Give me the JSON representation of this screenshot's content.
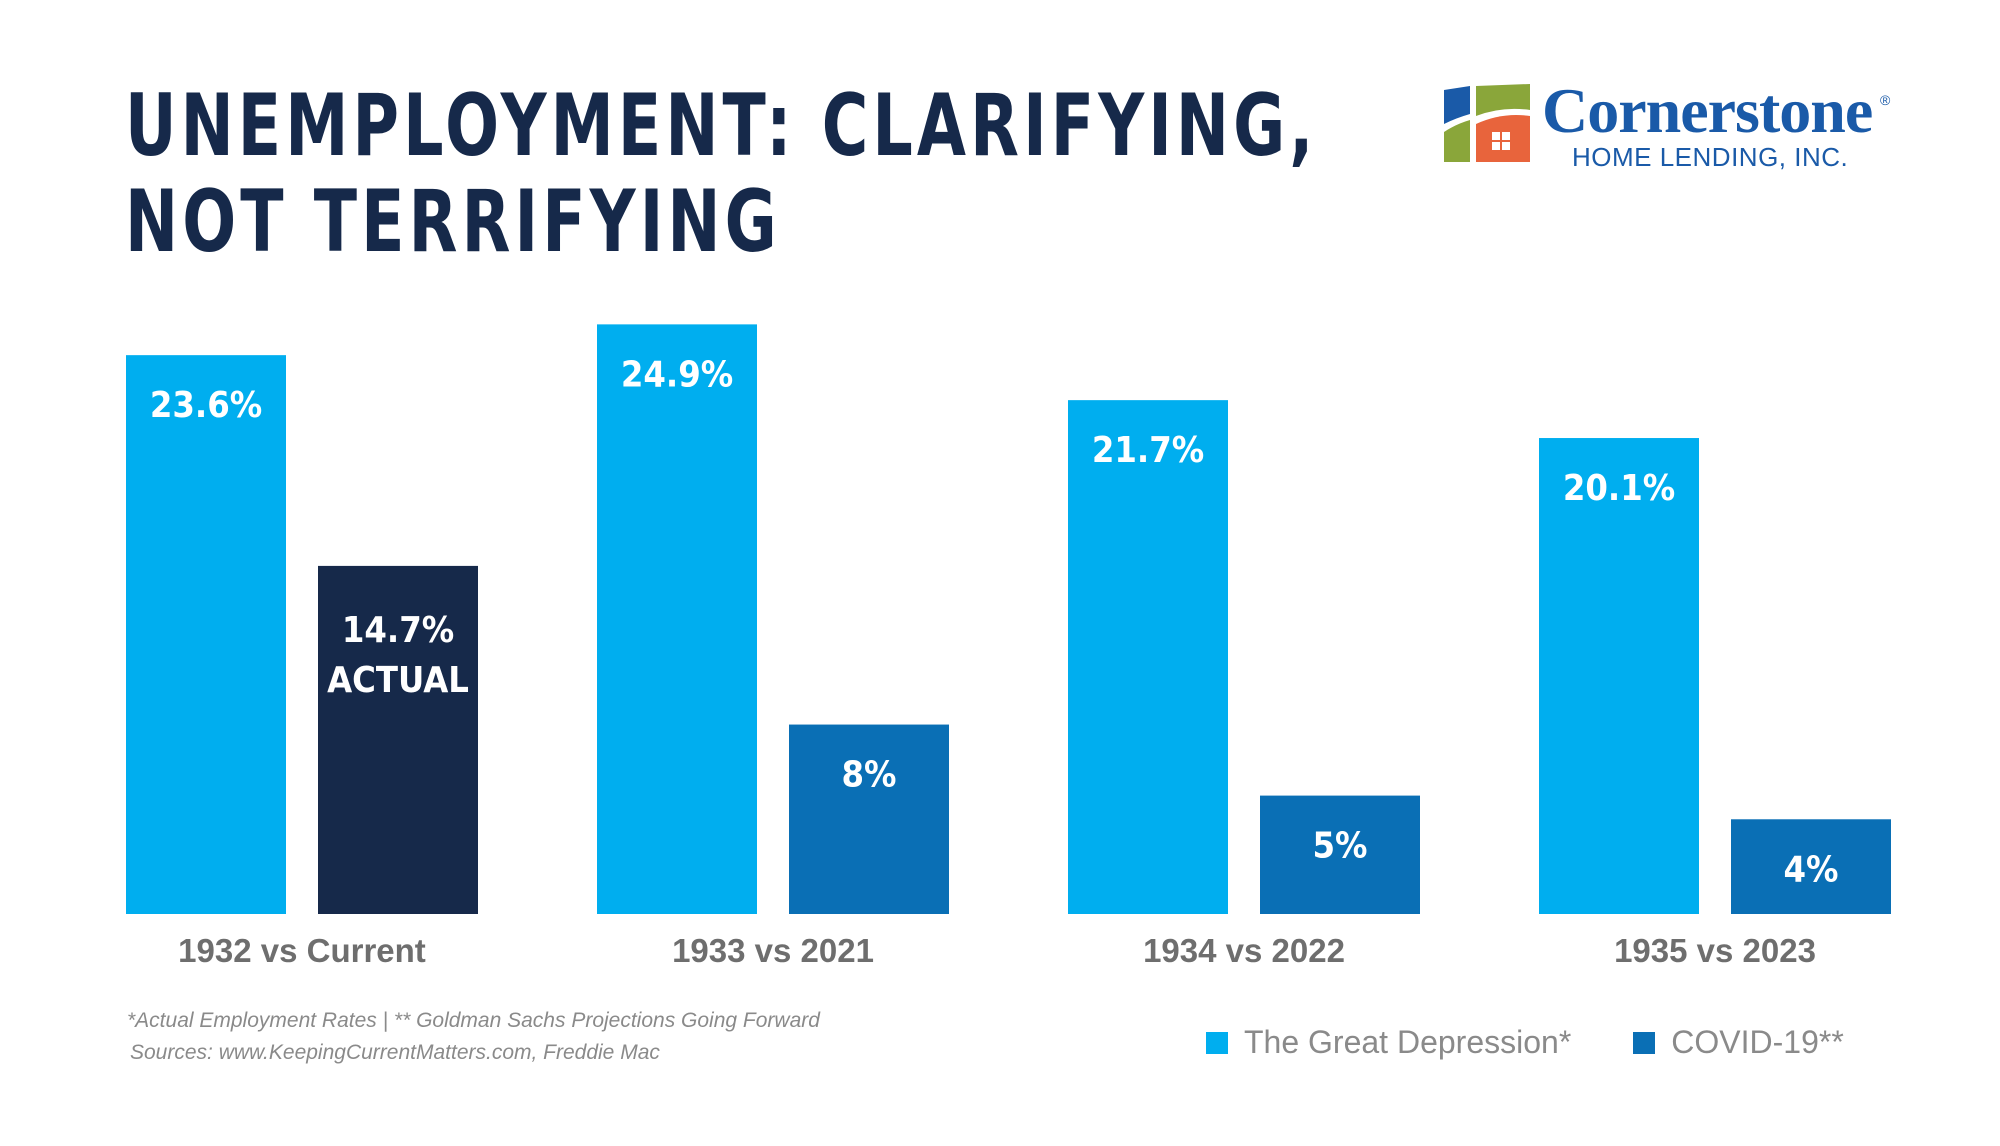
{
  "title_lines": [
    "UNEMPLOYMENT: CLARIFYING,",
    "NOT TERRIFYING"
  ],
  "logo": {
    "name": "Cornerstone",
    "registered": "®",
    "subtitle": "HOME LENDING, INC."
  },
  "colors": {
    "depression": "#00aeef",
    "covid": "#0a6fb5",
    "covid_actual": "#16294a",
    "title": "#16294a",
    "brand": "#1a5aa8"
  },
  "chart_data": {
    "type": "bar",
    "categories": [
      "1932 vs Current",
      "1933 vs 2021",
      "1934 vs 2022",
      "1935 vs 2023"
    ],
    "series": [
      {
        "name": "The Great Depression*",
        "values": [
          23.6,
          24.9,
          21.7,
          20.1
        ],
        "labels": [
          "23.6%",
          "24.9%",
          "21.7%",
          "20.1%"
        ]
      },
      {
        "name": "COVID-19**",
        "values": [
          14.7,
          8,
          5,
          4
        ],
        "labels": [
          "14.7%",
          "8%",
          "5%",
          "4%"
        ],
        "sublabels": [
          "ACTUAL",
          "",
          "",
          ""
        ]
      }
    ],
    "ylim": [
      0,
      25
    ],
    "legend_position": "bottom-right",
    "grid": false
  },
  "notes": {
    "footnote": "*Actual Employment Rates | ** Goldman Sachs Projections Going Forward",
    "sources": "Sources: www.KeepingCurrentMatters.com, Freddie Mac"
  },
  "legend": [
    {
      "label": "The Great Depression*",
      "color": "#00aeef"
    },
    {
      "label": "COVID-19**",
      "color": "#0a6fb5"
    }
  ]
}
